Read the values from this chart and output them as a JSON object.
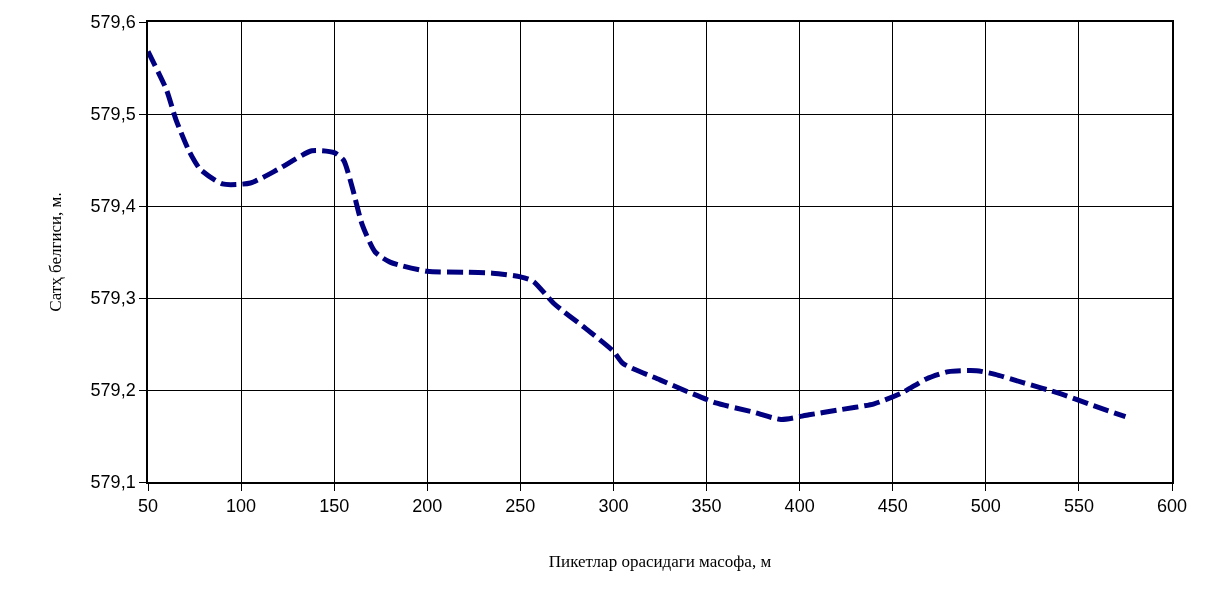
{
  "chart_data": {
    "type": "line",
    "xlabel": "Пикетлар орасидаги масофа, м",
    "ylabel": "Сатҳ белгиси, м.",
    "x": [
      50,
      60,
      65,
      72,
      78,
      90,
      105,
      120,
      138,
      150,
      155,
      160,
      165,
      172,
      180,
      200,
      220,
      235,
      250,
      257,
      268,
      285,
      300,
      305,
      325,
      340,
      355,
      375,
      390,
      405,
      420,
      440,
      455,
      468,
      480,
      495,
      505,
      520,
      540,
      555,
      575
    ],
    "series": [
      {
        "color": "#000080",
        "values": [
          579.568,
          579.526,
          579.494,
          579.46,
          579.44,
          579.424,
          579.425,
          579.44,
          579.46,
          579.458,
          579.45,
          579.418,
          579.38,
          579.35,
          579.339,
          579.329,
          579.328,
          579.327,
          579.323,
          579.318,
          579.294,
          579.267,
          579.242,
          579.229,
          579.211,
          579.198,
          579.186,
          579.176,
          579.168,
          579.173,
          579.178,
          579.185,
          579.197,
          579.212,
          579.22,
          579.221,
          579.217,
          579.208,
          579.196,
          579.185,
          579.171
        ]
      }
    ],
    "xlim": [
      50,
      600
    ],
    "xticks": [
      50,
      100,
      150,
      200,
      250,
      300,
      350,
      400,
      450,
      500,
      550,
      600
    ],
    "ylim": [
      579.1,
      579.6
    ],
    "yticks": [
      {
        "value": 579.1,
        "label": "579,1"
      },
      {
        "value": 579.2,
        "label": "579,2"
      },
      {
        "value": 579.3,
        "label": "579,3"
      },
      {
        "value": 579.4,
        "label": "579,4"
      },
      {
        "value": 579.5,
        "label": "579,5"
      },
      {
        "value": 579.6,
        "label": "579,6"
      }
    ],
    "grid": true,
    "marker": "none",
    "line_style": "dashed"
  }
}
